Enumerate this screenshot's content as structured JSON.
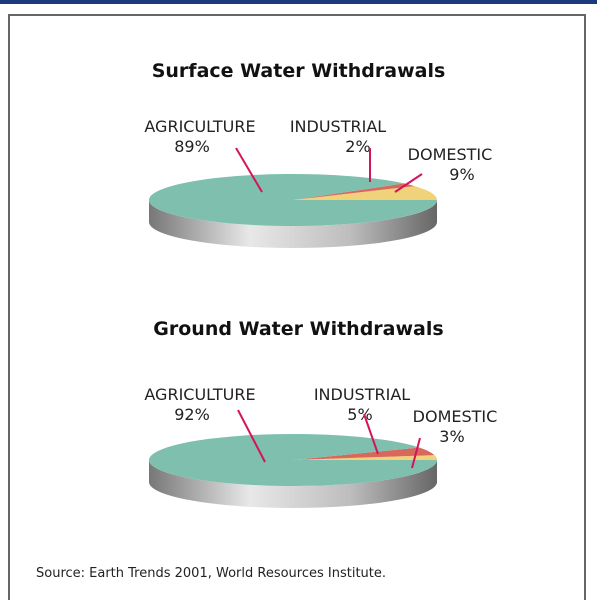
{
  "chart_data": [
    {
      "type": "pie",
      "title": "Surface Water Withdrawals",
      "slices": [
        {
          "label": "AGRICULTURE",
          "value": 89,
          "value_label": "89%",
          "color": "#7fbfae"
        },
        {
          "label": "INDUSTRIAL",
          "value": 2,
          "value_label": "2%",
          "color": "#d9685c"
        },
        {
          "label": "DOMESTIC",
          "value": 9,
          "value_label": "9%",
          "color": "#efd27a"
        }
      ]
    },
    {
      "type": "pie",
      "title": "Ground Water Withdrawals",
      "slices": [
        {
          "label": "AGRICULTURE",
          "value": 92,
          "value_label": "92%",
          "color": "#7fbfae"
        },
        {
          "label": "INDUSTRIAL",
          "value": 5,
          "value_label": "5%",
          "color": "#d9685c"
        },
        {
          "label": "DOMESTIC",
          "value": 3,
          "value_label": "3%",
          "color": "#efd27a"
        }
      ]
    }
  ],
  "source": "Source: Earth Trends 2001, World Resources Institute.",
  "colors": {
    "leader": "#d4145a",
    "accent_bar": "#1c3a7a"
  }
}
